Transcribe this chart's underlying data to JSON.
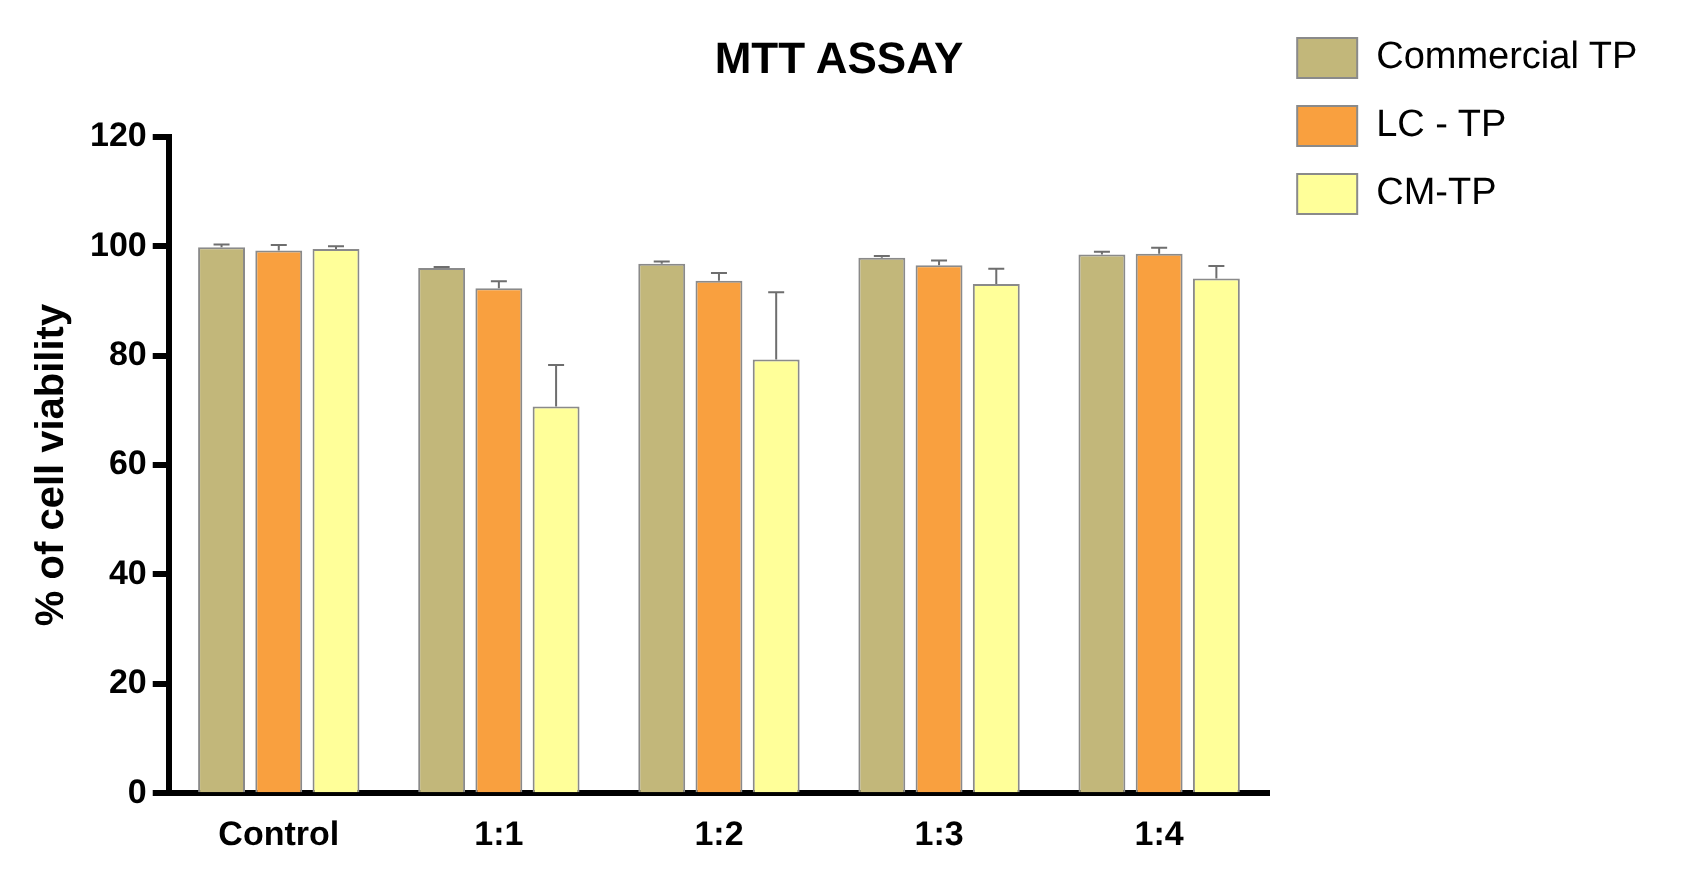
{
  "chart_data": {
    "type": "bar",
    "title": "MTT ASSAY",
    "ylabel": "% of cell viability",
    "categories": [
      "Control",
      "1:1",
      "1:2",
      "1:3",
      "1:4"
    ],
    "series": [
      {
        "name": "Commercial TP",
        "color": "#c2b77a",
        "values": [
          99.8,
          96.0,
          96.8,
          97.9,
          98.5
        ],
        "errors": [
          [
            99.8,
            100.3
          ],
          [
            96.0,
            96.2
          ],
          [
            96.8,
            97.2
          ],
          [
            97.9,
            98.2
          ],
          [
            98.5,
            99.0
          ]
        ]
      },
      {
        "name": "LC - TP",
        "color": "#f9a03f",
        "values": [
          99.2,
          92.3,
          93.7,
          96.5,
          98.6
        ],
        "errors": [
          [
            99.2,
            100.2
          ],
          [
            92.3,
            93.6
          ],
          [
            93.7,
            95.1
          ],
          [
            96.5,
            97.4
          ],
          [
            98.6,
            99.7
          ]
        ]
      },
      {
        "name": "CM-TP",
        "color": "#ffff99",
        "values": [
          99.5,
          70.7,
          79.3,
          93.1,
          94.1
        ],
        "errors": [
          [
            99.5,
            100.0
          ],
          [
            70.7,
            78.3
          ],
          [
            79.3,
            91.6
          ],
          [
            93.1,
            95.9
          ],
          [
            94.1,
            96.4
          ]
        ]
      }
    ],
    "ylim": [
      0,
      120
    ],
    "yticks": [
      0,
      20,
      40,
      60,
      80,
      100,
      120
    ],
    "grid": false,
    "legend": "right"
  }
}
